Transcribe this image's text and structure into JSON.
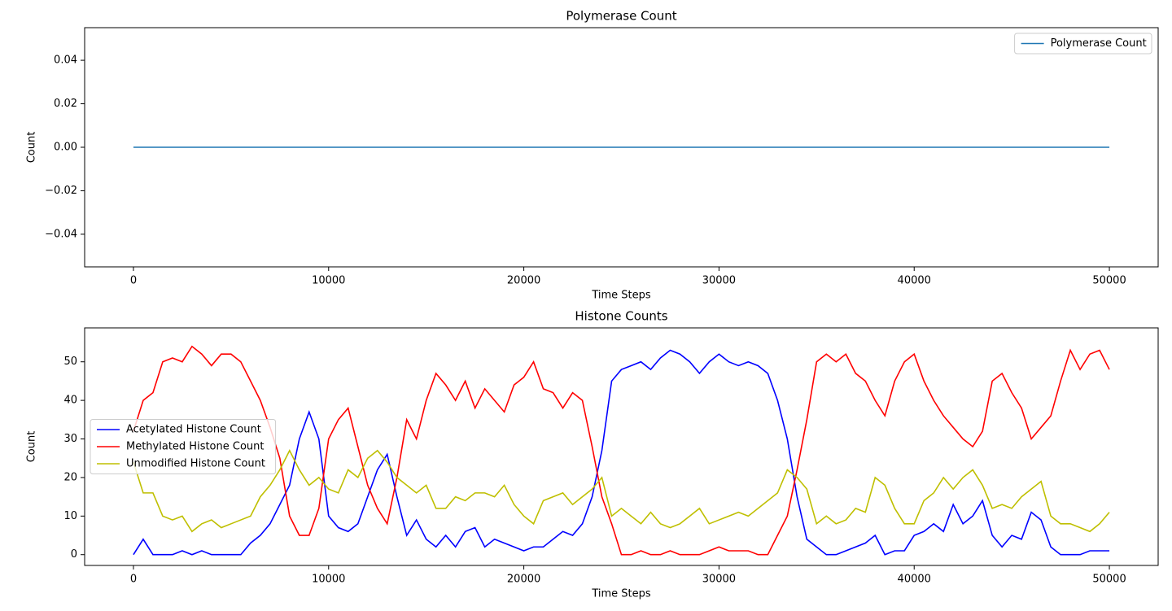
{
  "chart_data": [
    {
      "type": "line",
      "title": "Polymerase Count",
      "xlabel": "Time Steps",
      "ylabel": "Count",
      "x": [
        0,
        50000
      ],
      "series": [
        {
          "name": "Polymerase Count",
          "color": "#1f77b4",
          "values": [
            0,
            0
          ]
        }
      ],
      "xlim": [
        -2500,
        52500
      ],
      "ylim": [
        -0.055,
        0.055
      ],
      "xticks": [
        0,
        10000,
        20000,
        30000,
        40000,
        50000
      ],
      "yticks": [
        {
          "value": -0.04,
          "label": "−0.04"
        },
        {
          "value": -0.02,
          "label": "−0.02"
        },
        {
          "value": 0,
          "label": "0.00"
        },
        {
          "value": 0.02,
          "label": "0.02"
        },
        {
          "value": 0.04,
          "label": "0.04"
        }
      ],
      "legend": "upper right"
    },
    {
      "type": "line",
      "title": "Histone Counts",
      "xlabel": "Time Steps",
      "ylabel": "Count",
      "x": [
        0,
        500,
        1000,
        1500,
        2000,
        2500,
        3000,
        3500,
        4000,
        4500,
        5000,
        5500,
        6000,
        6500,
        7000,
        7500,
        8000,
        8500,
        9000,
        9500,
        10000,
        10500,
        11000,
        11500,
        12000,
        12500,
        13000,
        13500,
        14000,
        14500,
        15000,
        15500,
        16000,
        16500,
        17000,
        17500,
        18000,
        18500,
        19000,
        19500,
        20000,
        20500,
        21000,
        21500,
        22000,
        22500,
        23000,
        23500,
        24000,
        24500,
        25000,
        25500,
        26000,
        26500,
        27000,
        27500,
        28000,
        28500,
        29000,
        29500,
        30000,
        30500,
        31000,
        31500,
        32000,
        32500,
        33000,
        33500,
        34000,
        34500,
        35000,
        35500,
        36000,
        36500,
        37000,
        37500,
        38000,
        38500,
        39000,
        39500,
        40000,
        40500,
        41000,
        41500,
        42000,
        42500,
        43000,
        43500,
        44000,
        44500,
        45000,
        45500,
        46000,
        46500,
        47000,
        47500,
        48000,
        48500,
        49000,
        49500,
        50000
      ],
      "series": [
        {
          "name": "Acetylated Histone Count",
          "color": "#0000ff",
          "values": [
            0,
            4,
            0,
            0,
            0,
            1,
            0,
            1,
            0,
            0,
            0,
            0,
            3,
            5,
            8,
            13,
            18,
            30,
            37,
            30,
            10,
            7,
            6,
            8,
            15,
            22,
            26,
            15,
            5,
            9,
            4,
            2,
            5,
            2,
            6,
            7,
            2,
            4,
            3,
            2,
            1,
            2,
            2,
            4,
            6,
            5,
            8,
            15,
            27,
            45,
            48,
            49,
            50,
            48,
            51,
            53,
            52,
            50,
            47,
            50,
            52,
            50,
            49,
            50,
            49,
            47,
            40,
            30,
            15,
            4,
            2,
            0,
            0,
            1,
            2,
            3,
            5,
            0,
            1,
            1,
            5,
            6,
            8,
            6,
            13,
            8,
            10,
            14,
            5,
            2,
            5,
            4,
            11,
            9,
            2,
            0,
            0,
            0,
            1,
            1,
            1
          ]
        },
        {
          "name": "Methylated Histone Count",
          "color": "#ff0000",
          "values": [
            32,
            40,
            42,
            50,
            51,
            50,
            54,
            52,
            49,
            52,
            52,
            50,
            45,
            40,
            33,
            25,
            10,
            5,
            5,
            12,
            30,
            35,
            38,
            28,
            18,
            12,
            8,
            20,
            35,
            30,
            40,
            47,
            44,
            40,
            45,
            38,
            43,
            40,
            37,
            44,
            46,
            50,
            43,
            42,
            38,
            42,
            40,
            28,
            15,
            8,
            0,
            0,
            1,
            0,
            0,
            1,
            0,
            0,
            0,
            1,
            2,
            1,
            1,
            1,
            0,
            0,
            5,
            10,
            22,
            35,
            50,
            52,
            50,
            52,
            47,
            45,
            40,
            36,
            45,
            50,
            52,
            45,
            40,
            36,
            33,
            30,
            28,
            32,
            45,
            47,
            42,
            38,
            30,
            33,
            36,
            45,
            53,
            48,
            52,
            53,
            48
          ]
        },
        {
          "name": "Unmodified Histone Count",
          "color": "#bfbf00",
          "values": [
            24,
            16,
            16,
            10,
            9,
            10,
            6,
            8,
            9,
            7,
            8,
            9,
            10,
            15,
            18,
            22,
            27,
            22,
            18,
            20,
            17,
            16,
            22,
            20,
            25,
            27,
            24,
            20,
            18,
            16,
            18,
            12,
            12,
            15,
            14,
            16,
            16,
            15,
            18,
            13,
            10,
            8,
            14,
            15,
            16,
            13,
            15,
            17,
            20,
            10,
            12,
            10,
            8,
            11,
            8,
            7,
            8,
            10,
            12,
            8,
            9,
            10,
            11,
            10,
            12,
            14,
            16,
            22,
            20,
            17,
            8,
            10,
            8,
            9,
            12,
            11,
            20,
            18,
            12,
            8,
            8,
            14,
            16,
            20,
            17,
            20,
            22,
            18,
            12,
            13,
            12,
            15,
            17,
            19,
            10,
            8,
            8,
            7,
            6,
            8,
            11
          ]
        }
      ],
      "xlim": [
        -2500,
        52500
      ],
      "ylim": [
        -2.8,
        58.8
      ],
      "xticks": [
        0,
        10000,
        20000,
        30000,
        40000,
        50000
      ],
      "yticks": [
        0,
        10,
        20,
        30,
        40,
        50
      ],
      "legend": "center left"
    }
  ]
}
